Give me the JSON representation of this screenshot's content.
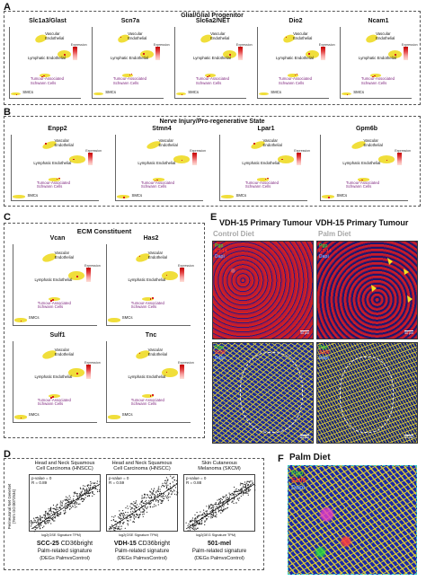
{
  "panel_letters": {
    "a": "A",
    "b": "B",
    "c": "C",
    "d": "D",
    "e": "E",
    "f": "F"
  },
  "panelA": {
    "title": "Glial/Glial Progenitor",
    "genes": [
      "Slc1a3/Glast",
      "Scn7a",
      "Slc6a2/NET",
      "Dio2",
      "Ncam1"
    ]
  },
  "panelB": {
    "title": "Nerve Injury/Pro-regenerative State",
    "genes": [
      "Enpp2",
      "Stmn4",
      "Lpar1",
      "Gpm6b"
    ]
  },
  "panelC": {
    "title": "ECM Constituent",
    "genes": [
      "Vcan",
      "Has2",
      "Sulf1",
      "Tnc"
    ]
  },
  "clusters": {
    "vascular": "Vascular\nEndothelial",
    "lymphatic": "Lymphatic Endothelial",
    "schwann": "Tumour-Associated\nSchwann Cells",
    "smc": "SMCs"
  },
  "legend_title": "Expression",
  "panelD": {
    "headers": [
      "Head and Neck Squamous\nCell Carcinoma (HNSCC)",
      "Head and Neck Squamous\nCell Carcinoma (HNSCC)",
      "Skin Cutaneous\nMelanoma (SKCM)"
    ],
    "ylabel": "Perineuronal Net GeneSet\n(Term GO:0072534)",
    "stats": [
      "p-value = 0\nR = 0.89",
      "p-value = 0\nR = 0.59",
      "p-value = 0\nR = 0.88"
    ],
    "xlabels": [
      "log2(GSE Signature TPM)",
      "log2(GSE Signature TPM)",
      "log2(DEG Signature TPM)"
    ],
    "footers": [
      {
        "name": "SCC-25",
        "suffix": "CD36bright",
        "l2": "Palm-related signature",
        "l3": "(DEGs PalmvsControl)"
      },
      {
        "name": "VDH-15",
        "suffix": "CD36bright",
        "l2": "Palm-related signature",
        "l3": "(DEGs PalmvsControl)"
      },
      {
        "name": "501-mel",
        "suffix": "",
        "l2": "Palm-related signature",
        "l3": "(DEGs PalmvsControl)"
      }
    ]
  },
  "panelE": {
    "col1_title": "VDH-15 Primary Tumour",
    "col1_sub": "Control Diet",
    "col2_title": "VDH-15 Primary Tumour",
    "col2_sub": "Palm Diet",
    "top_channels": [
      "Pgp",
      "KT-14",
      "Dapi"
    ],
    "bottom_channels": [
      "Pgp",
      "S100",
      "Dapi"
    ],
    "scale": "50 μm"
  },
  "panelF": {
    "title": "Palm Diet",
    "channels": [
      "Pgp",
      "S100",
      "Dapi"
    ]
  },
  "colors": {
    "umap_yellow": "#f0de3a",
    "expression_high": "#c40000",
    "schwann_label": "#7a1f7a",
    "f_border": "#37c9c9"
  }
}
